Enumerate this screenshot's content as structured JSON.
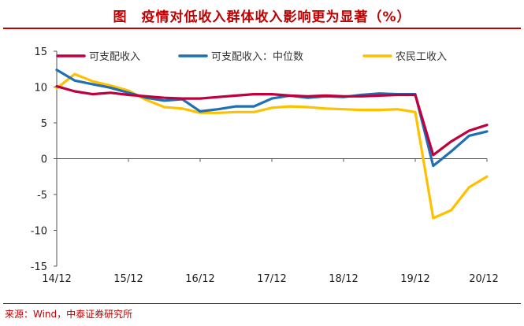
{
  "title": "图　疫情对低收入群体收入影响更为显著（%）",
  "source": "来源：Wind，中泰证券研究所",
  "chart_data": {
    "type": "line",
    "title": "图　疫情对低收入群体收入影响更为显著（%）",
    "xlabel": "",
    "ylabel": "",
    "x_ticks": [
      "14/12",
      "15/12",
      "16/12",
      "17/12",
      "18/12",
      "19/12",
      "20/12"
    ],
    "x_range": [
      "2014/12",
      "2020/12"
    ],
    "y_ticks": [
      15,
      10,
      5,
      0,
      -5,
      -10,
      -15
    ],
    "ylim": [
      -15,
      15
    ],
    "grid": false,
    "legend_position": "top",
    "series": [
      {
        "name": "可支配收入",
        "color": "#c0003c",
        "points": [
          [
            "2014/12",
            10.1
          ],
          [
            "2015/03",
            9.4
          ],
          [
            "2015/06",
            9.0
          ],
          [
            "2015/09",
            9.2
          ],
          [
            "2015/12",
            8.9
          ],
          [
            "2016/03",
            8.7
          ],
          [
            "2016/06",
            8.5
          ],
          [
            "2016/09",
            8.4
          ],
          [
            "2016/12",
            8.4
          ],
          [
            "2017/03",
            8.6
          ],
          [
            "2017/06",
            8.8
          ],
          [
            "2017/09",
            9.0
          ],
          [
            "2017/12",
            9.0
          ],
          [
            "2018/03",
            8.8
          ],
          [
            "2018/06",
            8.7
          ],
          [
            "2018/09",
            8.8
          ],
          [
            "2018/12",
            8.7
          ],
          [
            "2019/03",
            8.7
          ],
          [
            "2019/06",
            8.8
          ],
          [
            "2019/09",
            8.9
          ],
          [
            "2019/12",
            8.9
          ],
          [
            "2020/03",
            0.5
          ],
          [
            "2020/06",
            2.4
          ],
          [
            "2020/09",
            3.9
          ],
          [
            "2020/12",
            4.7
          ]
        ]
      },
      {
        "name": "可支配收入：中位数",
        "color": "#1f6fb5",
        "points": [
          [
            "2014/12",
            12.4
          ],
          [
            "2015/03",
            10.9
          ],
          [
            "2015/06",
            10.4
          ],
          [
            "2015/09",
            9.9
          ],
          [
            "2015/12",
            9.2
          ],
          [
            "2016/03",
            8.5
          ],
          [
            "2016/06",
            8.1
          ],
          [
            "2016/09",
            8.3
          ],
          [
            "2016/12",
            6.6
          ],
          [
            "2017/03",
            6.9
          ],
          [
            "2017/06",
            7.3
          ],
          [
            "2017/09",
            7.3
          ],
          [
            "2017/12",
            8.4
          ],
          [
            "2018/03",
            8.8
          ],
          [
            "2018/06",
            8.5
          ],
          [
            "2018/09",
            8.7
          ],
          [
            "2018/12",
            8.6
          ],
          [
            "2019/03",
            8.9
          ],
          [
            "2019/06",
            9.1
          ],
          [
            "2019/09",
            9.0
          ],
          [
            "2019/12",
            9.0
          ],
          [
            "2020/03",
            -1.0
          ],
          [
            "2020/06",
            1.0
          ],
          [
            "2020/09",
            3.2
          ],
          [
            "2020/12",
            3.8
          ]
        ]
      },
      {
        "name": "农民工收入",
        "color": "#ffc000",
        "points": [
          [
            "2014/12",
            9.8
          ],
          [
            "2015/03",
            11.8
          ],
          [
            "2015/06",
            10.8
          ],
          [
            "2015/09",
            10.2
          ],
          [
            "2015/12",
            9.5
          ],
          [
            "2016/03",
            8.2
          ],
          [
            "2016/06",
            7.2
          ],
          [
            "2016/09",
            7.0
          ],
          [
            "2016/12",
            6.4
          ],
          [
            "2017/03",
            6.4
          ],
          [
            "2017/06",
            6.5
          ],
          [
            "2017/09",
            6.5
          ],
          [
            "2017/12",
            7.1
          ],
          [
            "2018/03",
            7.3
          ],
          [
            "2018/06",
            7.2
          ],
          [
            "2018/09",
            7.0
          ],
          [
            "2018/12",
            6.9
          ],
          [
            "2019/03",
            6.8
          ],
          [
            "2019/06",
            6.8
          ],
          [
            "2019/09",
            6.9
          ],
          [
            "2019/12",
            6.5
          ],
          [
            "2020/03",
            -8.3
          ],
          [
            "2020/06",
            -7.2
          ],
          [
            "2020/09",
            -4.0
          ],
          [
            "2020/12",
            -2.5
          ]
        ]
      }
    ]
  }
}
